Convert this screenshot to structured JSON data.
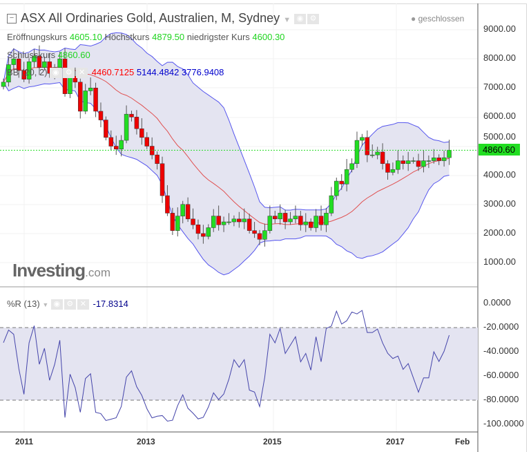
{
  "header": {
    "title": "ASX All Ordinaries Gold, Australien, M, Sydney",
    "status": "geschlossen",
    "open_label": "Eröffnungskurs",
    "open": "4605.10",
    "high_label": "Höchstkurs",
    "high": "4879.50",
    "low_label": "niedrigster Kurs",
    "low": "4600.30",
    "close_label": "Schlusskurs",
    "close": "4860.60",
    "bb_label": "BB (20, 2)",
    "bb_mid": "4460.7125",
    "bb_upper": "5144.4842",
    "bb_lower": "3776.9408"
  },
  "indicator": {
    "label": "%R (13)",
    "value": "-17.8314"
  },
  "watermark": "Investing.com",
  "colors": {
    "up": "#22dd22",
    "down": "#ee0000",
    "band": "#5555ee",
    "band_fill": "#e4e4f1",
    "mid": "#e05050",
    "last_price": "#22dd22"
  },
  "chart_data": [
    {
      "type": "candlestick",
      "price_axis": {
        "ticks": [
          "9000.00",
          "8000.00",
          "7000.00",
          "6000.00",
          "5000.00",
          "4000.00",
          "3000.00",
          "2000.00",
          "1000.00"
        ],
        "ylim": [
          400,
          9300
        ]
      },
      "last_price": "4860.60",
      "x_ticks": [
        "2011",
        "2013",
        "2015",
        "2017",
        "Feb"
      ],
      "start": "2010-09",
      "interval": "monthly",
      "closes": [
        7200,
        7800,
        8000,
        7600,
        7300,
        7900,
        8100,
        7700,
        7900,
        7500,
        7700,
        8000,
        6800,
        7400,
        7200,
        6200,
        6900,
        7000,
        6200,
        5900,
        5300,
        5000,
        4900,
        5200,
        6100,
        6000,
        5600,
        5300,
        5000,
        4700,
        4400,
        3300,
        2700,
        2100,
        2600,
        3000,
        2500,
        2300,
        2000,
        1900,
        2200,
        2600,
        2300,
        2400,
        2400,
        2500,
        2400,
        2500,
        2100,
        2000,
        1800,
        2100,
        2600,
        2500,
        2700,
        2400,
        2500,
        2600,
        2300,
        2400,
        2200,
        2600,
        2300,
        2700,
        3300,
        3800,
        3700,
        4200,
        4400,
        5200,
        5300,
        4700,
        4700,
        4800,
        4400,
        4100,
        4200,
        4500,
        4400,
        4500,
        4500,
        4300,
        4500,
        4500,
        4600,
        4500,
        4605.1,
        4860.6
      ]
    },
    {
      "type": "line",
      "name": "%R (13)",
      "y_ticks": [
        "0.0000",
        "-20.0000",
        "-40.0000",
        "-60.0000",
        "-80.0000",
        "-100.0000"
      ],
      "ylim": [
        -100,
        0
      ],
      "levels": [
        -20,
        -80
      ]
    }
  ]
}
